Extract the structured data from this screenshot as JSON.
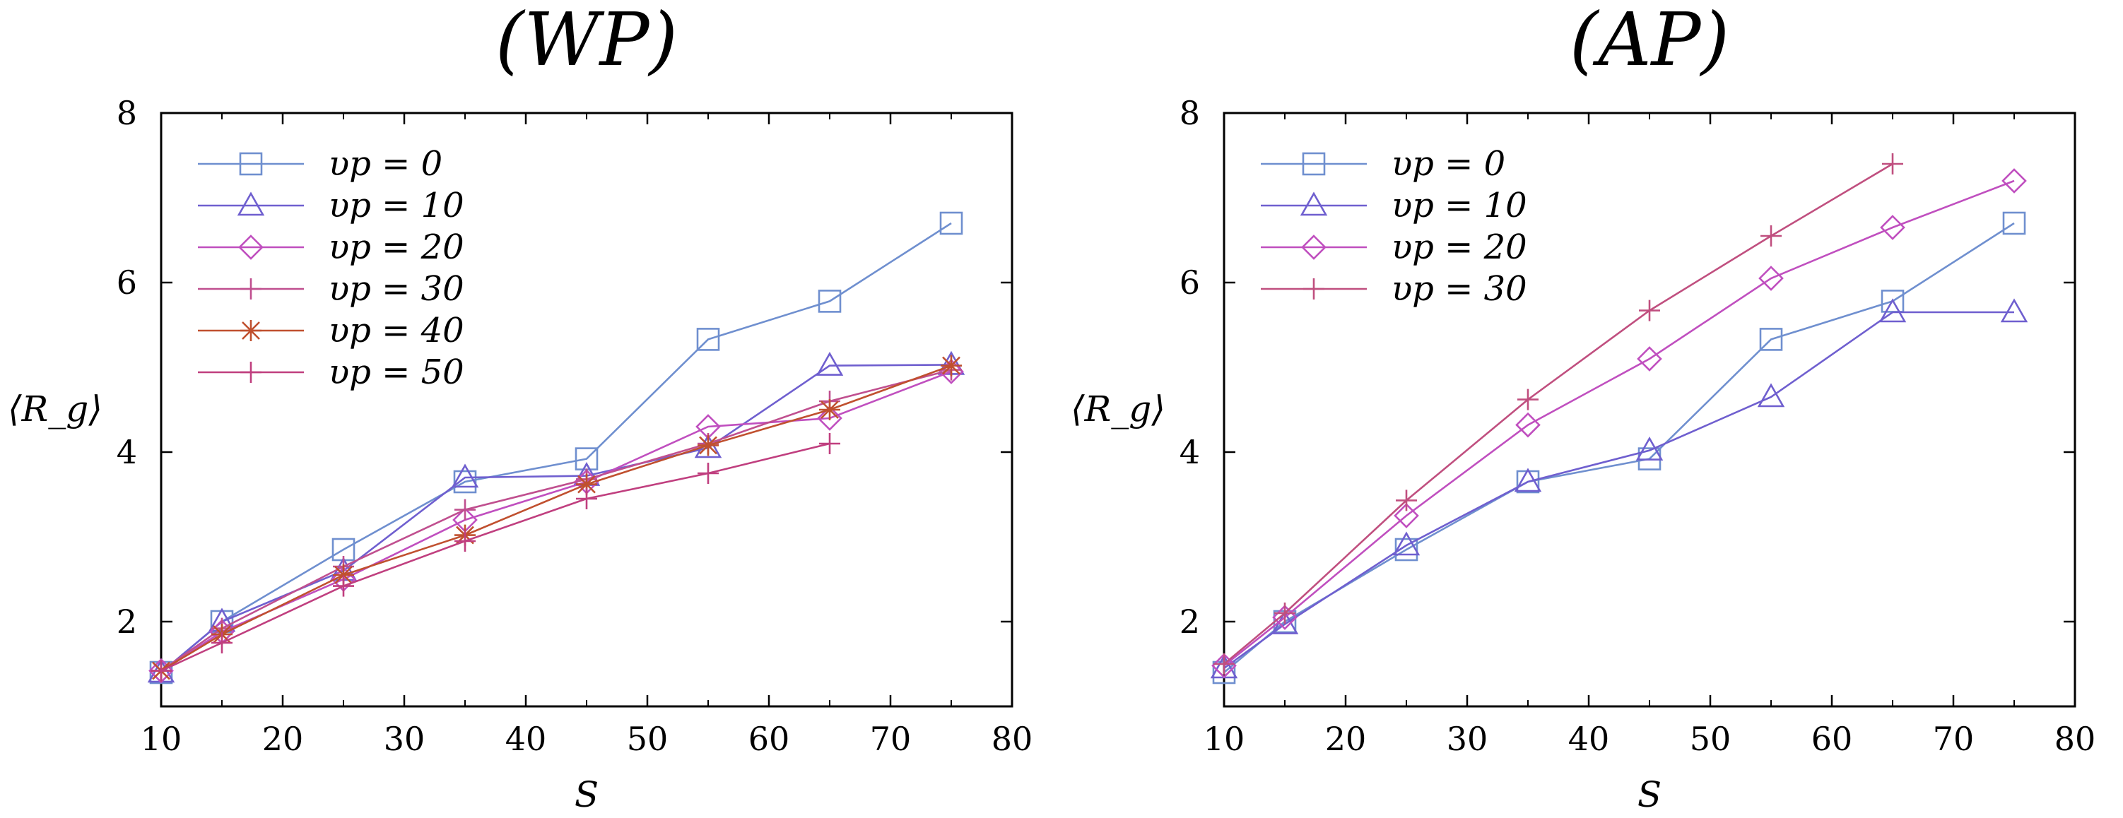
{
  "chart_data": [
    {
      "type": "line",
      "title": "(WP)",
      "xlabel": "S",
      "ylabel": "⟨R_g⟩",
      "xlim": [
        10,
        80
      ],
      "ylim": [
        1,
        8
      ],
      "xticks": [
        "10",
        "20",
        "30",
        "40",
        "50",
        "60",
        "70",
        "80"
      ],
      "yticks": [
        "2",
        "4",
        "6",
        "8"
      ],
      "grid": false,
      "legend": "top-left",
      "series": [
        {
          "name": "υp = 0",
          "marker": "square",
          "color": "#6f8fcf",
          "x": [
            10,
            15,
            25,
            35,
            45,
            55,
            65,
            75
          ],
          "y": [
            1.4,
            2.0,
            2.85,
            3.65,
            3.92,
            5.33,
            5.78,
            6.7
          ]
        },
        {
          "name": "υp = 10",
          "marker": "triangle",
          "color": "#6f5fcf",
          "x": [
            10,
            15,
            25,
            35,
            45,
            55,
            65,
            75
          ],
          "y": [
            1.4,
            2.0,
            2.6,
            3.7,
            3.72,
            4.05,
            5.02,
            5.03
          ]
        },
        {
          "name": "υp = 20",
          "marker": "diamond",
          "color": "#c04fbf",
          "x": [
            10,
            15,
            25,
            35,
            45,
            55,
            65,
            75
          ],
          "y": [
            1.42,
            1.88,
            2.5,
            3.2,
            3.65,
            4.3,
            4.4,
            4.95
          ]
        },
        {
          "name": "υp = 30",
          "marker": "plus",
          "color": "#c04f8f",
          "x": [
            10,
            15,
            25,
            35,
            45,
            55,
            65,
            75
          ],
          "y": [
            1.42,
            1.92,
            2.65,
            3.32,
            3.68,
            4.1,
            4.6,
            4.97
          ]
        },
        {
          "name": "υp = 40",
          "marker": "star",
          "color": "#c0502f",
          "x": [
            10,
            15,
            25,
            35,
            45,
            55,
            65,
            75
          ],
          "y": [
            1.42,
            1.85,
            2.55,
            3.02,
            3.62,
            4.08,
            4.5,
            5.02
          ]
        },
        {
          "name": "υp = 50",
          "marker": "plus",
          "color": "#c03f7f",
          "x": [
            10,
            15,
            25,
            35,
            45,
            55,
            65
          ],
          "y": [
            1.42,
            1.75,
            2.42,
            2.95,
            3.45,
            3.75,
            4.1
          ]
        }
      ]
    },
    {
      "type": "line",
      "title": "(AP)",
      "xlabel": "S",
      "ylabel": "⟨R_g⟩",
      "xlim": [
        10,
        80
      ],
      "ylim": [
        1,
        8
      ],
      "xticks": [
        "10",
        "20",
        "30",
        "40",
        "50",
        "60",
        "70",
        "80"
      ],
      "yticks": [
        "2",
        "4",
        "6",
        "8"
      ],
      "grid": false,
      "legend": "top-left",
      "series": [
        {
          "name": "υp = 0",
          "marker": "square",
          "color": "#6f8fcf",
          "x": [
            10,
            15,
            25,
            35,
            45,
            55,
            65,
            75
          ],
          "y": [
            1.4,
            2.0,
            2.85,
            3.65,
            3.92,
            5.33,
            5.78,
            6.7
          ]
        },
        {
          "name": "υp = 10",
          "marker": "triangle",
          "color": "#6f5fcf",
          "x": [
            10,
            15,
            25,
            35,
            45,
            55,
            65,
            75
          ],
          "y": [
            1.45,
            1.97,
            2.9,
            3.65,
            4.02,
            4.65,
            5.65,
            5.65
          ]
        },
        {
          "name": "υp = 20",
          "marker": "diamond",
          "color": "#c04fbf",
          "x": [
            10,
            15,
            25,
            35,
            45,
            55,
            65,
            75
          ],
          "y": [
            1.48,
            2.05,
            3.25,
            4.32,
            5.1,
            6.05,
            6.65,
            7.2
          ]
        },
        {
          "name": "υp = 30",
          "marker": "plus",
          "color": "#c04f7f",
          "x": [
            10,
            15,
            25,
            35,
            45,
            55,
            65
          ],
          "y": [
            1.5,
            2.1,
            3.43,
            4.62,
            5.67,
            6.55,
            7.4
          ]
        }
      ]
    }
  ]
}
